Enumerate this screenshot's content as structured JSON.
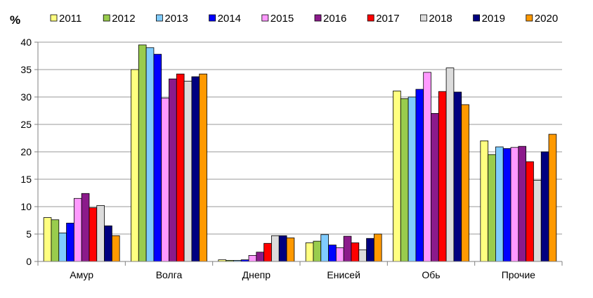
{
  "chart_data": {
    "type": "bar",
    "ylabel": "%",
    "ylim": [
      0,
      40
    ],
    "yticks": [
      0,
      5,
      10,
      15,
      20,
      25,
      30,
      35,
      40
    ],
    "grid": true,
    "legend_position": "top",
    "categories": [
      "Амур",
      "Волга",
      "Днепр",
      "Енисей",
      "Обь",
      "Прочие"
    ],
    "series": [
      {
        "name": "2011",
        "color": "#FFFF80",
        "values": [
          8.0,
          35.0,
          0.3,
          3.4,
          31.1,
          22.0
        ]
      },
      {
        "name": "2012",
        "color": "#99CC4D",
        "values": [
          7.6,
          39.5,
          0.2,
          3.7,
          29.7,
          19.5
        ]
      },
      {
        "name": "2013",
        "color": "#80CCFF",
        "values": [
          5.2,
          39.0,
          0.2,
          4.9,
          30.0,
          20.9
        ]
      },
      {
        "name": "2014",
        "color": "#0000FF",
        "values": [
          7.0,
          37.8,
          0.3,
          3.0,
          31.4,
          20.6
        ]
      },
      {
        "name": "2015",
        "color": "#FF99FF",
        "values": [
          11.5,
          29.8,
          1.1,
          2.5,
          34.5,
          20.8
        ]
      },
      {
        "name": "2016",
        "color": "#8B1A8B",
        "values": [
          12.4,
          33.3,
          1.7,
          4.6,
          27.0,
          21.0
        ]
      },
      {
        "name": "2017",
        "color": "#FF0000",
        "values": [
          9.8,
          34.2,
          3.3,
          3.4,
          31.0,
          18.2
        ]
      },
      {
        "name": "2018",
        "color": "#DCDCDC",
        "values": [
          10.2,
          32.9,
          4.7,
          2.1,
          35.3,
          14.8
        ]
      },
      {
        "name": "2019",
        "color": "#000080",
        "values": [
          6.5,
          33.7,
          4.7,
          4.2,
          30.9,
          20.0
        ]
      },
      {
        "name": "2020",
        "color": "#FF9900",
        "values": [
          4.7,
          34.2,
          4.3,
          5.0,
          28.6,
          23.2
        ]
      }
    ]
  }
}
